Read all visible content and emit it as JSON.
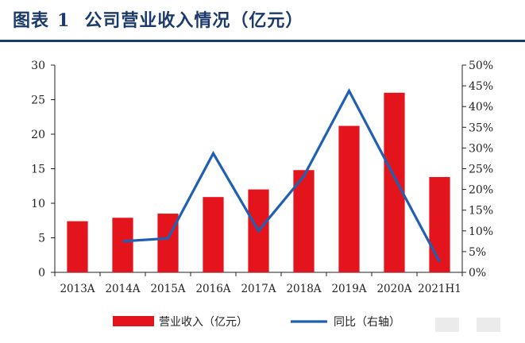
{
  "figure": {
    "label": "图表",
    "number": "1",
    "title": "公司营业收入情况（亿元）"
  },
  "chart_data": {
    "type": "bar",
    "categories": [
      "2013A",
      "2014A",
      "2015A",
      "2016A",
      "2017A",
      "2018A",
      "2019A",
      "2020A",
      "2021H1"
    ],
    "series": [
      {
        "name": "营业收入（亿元）",
        "type": "bar",
        "axis": "left",
        "color": "#e3141c",
        "values": [
          7.4,
          7.9,
          8.5,
          10.9,
          12.0,
          14.8,
          21.2,
          26.0,
          13.8
        ]
      },
      {
        "name": "同比（右轴）",
        "type": "line",
        "axis": "right",
        "color": "#1f5fb4",
        "values": [
          null,
          7.5,
          8.2,
          28.7,
          10.0,
          23.2,
          43.8,
          23.0,
          2.5
        ]
      }
    ],
    "left_axis": {
      "min": 0,
      "max": 30,
      "step": 5,
      "ticks": [
        "0",
        "5",
        "10",
        "15",
        "20",
        "25",
        "30"
      ]
    },
    "right_axis": {
      "min": 0,
      "max": 50,
      "step": 5,
      "ticks": [
        "0%",
        "5%",
        "10%",
        "15%",
        "20%",
        "25%",
        "30%",
        "35%",
        "40%",
        "45%",
        "50%"
      ]
    },
    "grid": false,
    "legend_position": "bottom"
  }
}
